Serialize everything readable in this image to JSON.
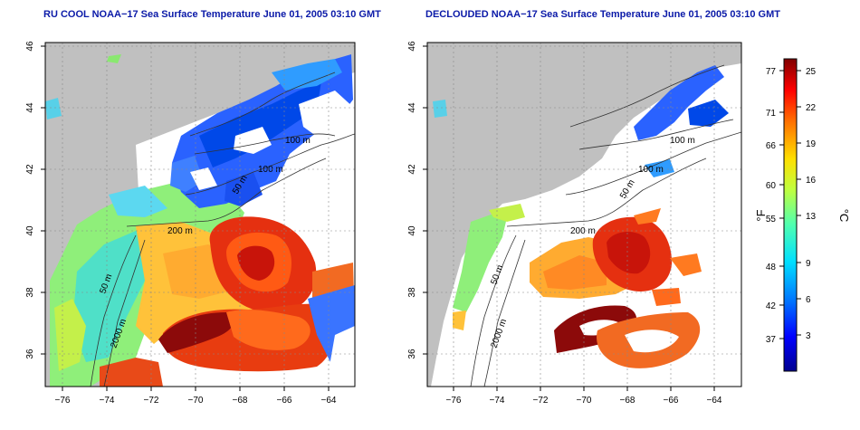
{
  "left_panel": {
    "title": "RU COOL NOAA−17 Sea Surface Temperature June 01, 2005 03:10 GMT",
    "x_ticks": [
      "−76",
      "−74",
      "−72",
      "−70",
      "−68",
      "−66",
      "−64"
    ],
    "y_ticks": [
      "36",
      "38",
      "40",
      "42",
      "44",
      "46"
    ],
    "contour_labels": [
      "100 m",
      "100 m",
      "50 m",
      "200 m",
      "50 m",
      "2000 m"
    ]
  },
  "right_panel": {
    "title": "DECLOUDED NOAA−17 Sea Surface Temperature June 01, 2005 03:10 GMT",
    "x_ticks": [
      "−76",
      "−74",
      "−72",
      "−70",
      "−68",
      "−66",
      "−64"
    ],
    "y_ticks": [
      "36",
      "38",
      "40",
      "42",
      "44",
      "46"
    ],
    "contour_labels": [
      "100 m",
      "100 m",
      "50 m",
      "200 m",
      "50 m",
      "2000 m"
    ]
  },
  "colorbar": {
    "label_f": "°F",
    "label_c": "°C",
    "ticks_f": [
      "77",
      "71",
      "66",
      "60",
      "55",
      "48",
      "42",
      "37"
    ],
    "ticks_c": [
      "25",
      "22",
      "19",
      "16",
      "13",
      "9",
      "6",
      "3"
    ],
    "colors": [
      "#00008f",
      "#0000ff",
      "#0070ff",
      "#00dfff",
      "#50ffaf",
      "#bfff40",
      "#ffdf00",
      "#ff7000",
      "#ff0000",
      "#800000"
    ]
  },
  "map_colors": {
    "land": "#c0c0c0",
    "cloud": "#ffffff"
  }
}
